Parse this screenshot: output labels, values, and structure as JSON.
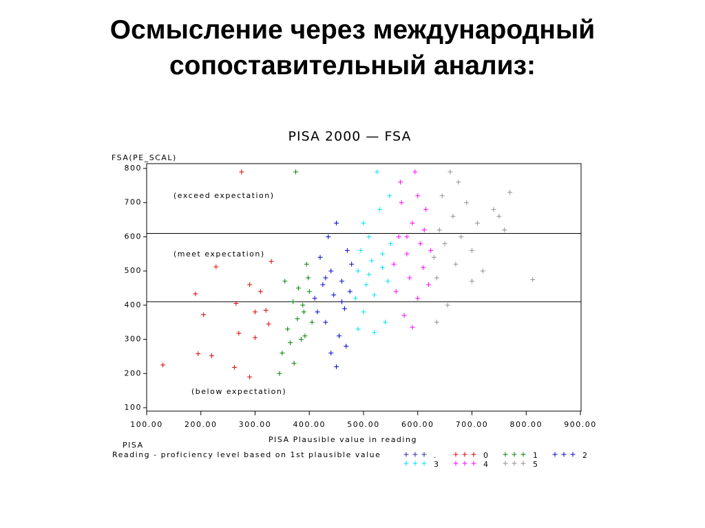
{
  "slide_title": [
    "Осмысление через международный",
    "сопоставительный анализ:"
  ],
  "chart_data": {
    "type": "scatter",
    "title": "PISA 2000 — FSA",
    "y_label": "FSA(PE_SCAL)",
    "x_label": "PISA Plausible value in reading",
    "legend_title": [
      "PISA",
      "Reading - proficiency level based on 1st plausible value"
    ],
    "xlim": [
      100,
      900
    ],
    "xticks": [
      {
        "value": 100,
        "label": "100.00"
      },
      {
        "value": 200,
        "label": "200.00"
      },
      {
        "value": 300,
        "label": "300.00"
      },
      {
        "value": 400,
        "label": "400.00"
      },
      {
        "value": 500,
        "label": "500.00"
      },
      {
        "value": 600,
        "label": "600.00"
      },
      {
        "value": 700,
        "label": "700.00"
      },
      {
        "value": 800,
        "label": "800.00"
      },
      {
        "value": 900,
        "label": "900.00"
      }
    ],
    "ylim": [
      100,
      800
    ],
    "yticks": [
      100,
      200,
      300,
      400,
      500,
      600,
      700,
      800
    ],
    "reference_lines": [
      410,
      610
    ],
    "annotations": [
      "(exceed expectation)",
      "(meet expectation)",
      "(below expectation)"
    ],
    "series": [
      {
        "name": ".",
        "color": "#2828a8",
        "x": [],
        "values": []
      },
      {
        "name": "0",
        "color": "#e00000",
        "x": [
          130,
          190,
          195,
          205,
          220,
          228,
          262,
          265,
          270,
          275,
          290,
          300,
          310,
          320,
          325,
          330,
          290,
          300
        ],
        "values": [
          225,
          433,
          258,
          372,
          252,
          512,
          218,
          405,
          318,
          790,
          190,
          305,
          440,
          385,
          345,
          528,
          460,
          380
        ]
      },
      {
        "name": "1",
        "color": "#008000",
        "x": [
          345,
          350,
          360,
          370,
          375,
          380,
          385,
          390,
          395,
          400,
          405,
          355,
          365,
          372,
          392,
          398,
          388,
          378
        ],
        "values": [
          200,
          260,
          330,
          410,
          790,
          450,
          300,
          380,
          520,
          440,
          350,
          470,
          290,
          230,
          310,
          480,
          400,
          360
        ]
      },
      {
        "name": "2",
        "color": "#0000d0",
        "x": [
          410,
          415,
          420,
          425,
          430,
          435,
          440,
          445,
          450,
          455,
          460,
          465,
          470,
          475,
          478,
          440,
          450,
          468,
          430,
          460
        ],
        "values": [
          420,
          380,
          540,
          460,
          350,
          600,
          500,
          430,
          640,
          310,
          470,
          390,
          560,
          440,
          520,
          260,
          220,
          280,
          480,
          410
        ]
      },
      {
        "name": "3",
        "color": "#00e0f0",
        "x": [
          485,
          490,
          495,
          500,
          505,
          510,
          515,
          520,
          525,
          530,
          535,
          540,
          545,
          550,
          500,
          520,
          535,
          490,
          548,
          510
        ],
        "values": [
          420,
          500,
          560,
          380,
          460,
          600,
          530,
          430,
          790,
          680,
          510,
          350,
          470,
          580,
          640,
          320,
          550,
          330,
          720,
          490
        ]
      },
      {
        "name": "4",
        "color": "#ff00ff",
        "x": [
          556,
          560,
          565,
          570,
          575,
          580,
          585,
          590,
          595,
          600,
          605,
          610,
          615,
          620,
          624,
          568,
          590,
          600,
          612,
          580
        ],
        "values": [
          520,
          440,
          600,
          700,
          370,
          550,
          480,
          640,
          790,
          420,
          580,
          510,
          680,
          460,
          560,
          760,
          335,
          720,
          620,
          600
        ]
      },
      {
        "name": "5",
        "color": "#909090",
        "x": [
          630,
          635,
          640,
          645,
          650,
          655,
          660,
          665,
          670,
          675,
          680,
          690,
          700,
          710,
          720,
          740,
          760,
          770,
          812,
          635,
          700,
          750
        ],
        "values": [
          540,
          480,
          620,
          720,
          580,
          400,
          790,
          660,
          520,
          760,
          600,
          700,
          560,
          640,
          500,
          680,
          620,
          730,
          475,
          350,
          470,
          660
        ]
      }
    ]
  }
}
